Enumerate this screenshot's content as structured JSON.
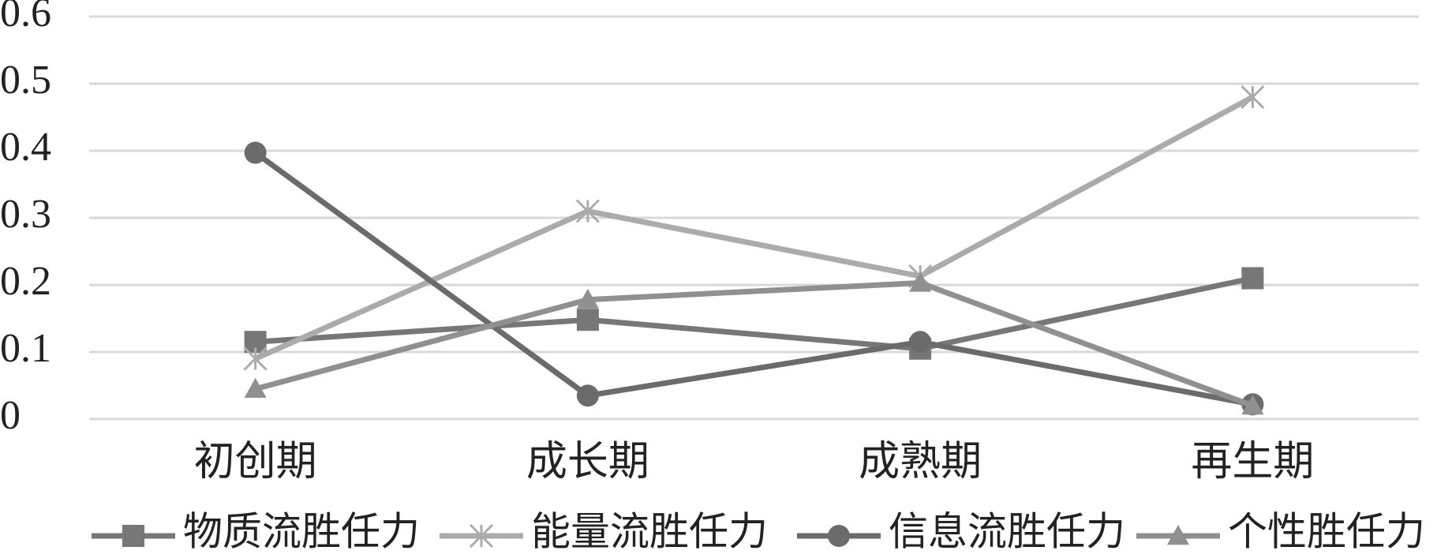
{
  "chart_data": {
    "type": "line",
    "categories": [
      "初创期",
      "成长期",
      "成熟期",
      "再生期"
    ],
    "series": [
      {
        "name": "物质流胜任力",
        "color": "#777777",
        "marker": "square",
        "values": [
          0.115,
          0.148,
          0.105,
          0.21
        ]
      },
      {
        "name": "能量流胜任力",
        "color": "#ababab",
        "marker": "star",
        "values": [
          0.09,
          0.31,
          0.213,
          0.48
        ]
      },
      {
        "name": "信息流胜任力",
        "color": "#6b6b6b",
        "marker": "circle",
        "values": [
          0.397,
          0.035,
          0.115,
          0.022
        ]
      },
      {
        "name": "个性胜任力",
        "color": "#909090",
        "marker": "triangle",
        "values": [
          0.045,
          0.178,
          0.203,
          0.02
        ]
      }
    ],
    "ylim": [
      0,
      0.6
    ],
    "yticks": [
      0,
      0.1,
      0.2,
      0.3,
      0.4,
      0.5,
      0.6
    ],
    "grid": true,
    "legend": "bottom"
  }
}
